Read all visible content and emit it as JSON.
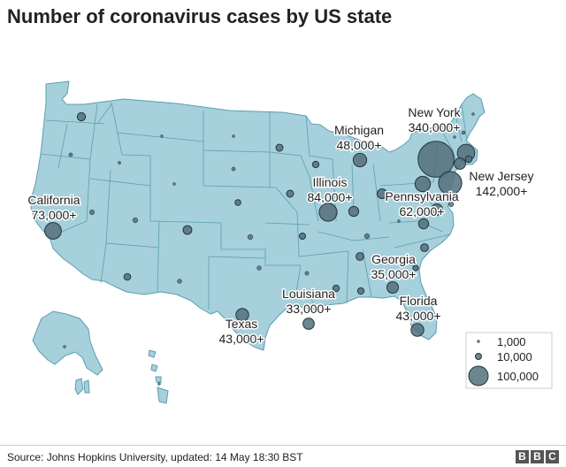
{
  "title": "Number of coronavirus cases by US state",
  "source": "Source: Johns Hopkins University, updated: 14 May 18:30 BST",
  "logo": [
    "B",
    "B",
    "C"
  ],
  "colors": {
    "land": "#a6d0dc",
    "land_stroke": "#5c9eb0",
    "bubble_fill": "#53707a",
    "bubble_stroke": "#22363d"
  },
  "labels": [
    {
      "state": "New York",
      "value": "340,000+"
    },
    {
      "state": "New Jersey",
      "value": "142,000+"
    },
    {
      "state": "Michigan",
      "value": "48,000+"
    },
    {
      "state": "Illinois",
      "value": "84,000+"
    },
    {
      "state": "Pennsylvania",
      "value": "62,000+"
    },
    {
      "state": "California",
      "value": "73,000+"
    },
    {
      "state": "Georgia",
      "value": "35,000+"
    },
    {
      "state": "Louisiana",
      "value": "33,000+"
    },
    {
      "state": "Florida",
      "value": "43,000+"
    },
    {
      "state": "Texas",
      "value": "43,000+"
    }
  ],
  "legend": [
    {
      "label": "1,000",
      "value": 1000
    },
    {
      "label": "10,000",
      "value": 10000
    },
    {
      "label": "100,000",
      "value": 100000
    }
  ],
  "cases": [
    {
      "id": "new-york",
      "value": 340000
    },
    {
      "id": "new-jersey",
      "value": 142000
    },
    {
      "id": "illinois",
      "value": 84000
    },
    {
      "id": "california",
      "value": 73000
    },
    {
      "id": "massachusetts",
      "value": 80000
    },
    {
      "id": "pennsylvania",
      "value": 62000
    },
    {
      "id": "michigan",
      "value": 48000
    },
    {
      "id": "connecticut",
      "value": 34000
    },
    {
      "id": "texas",
      "value": 43000
    },
    {
      "id": "florida",
      "value": 43000
    },
    {
      "id": "georgia",
      "value": 35000
    },
    {
      "id": "louisiana",
      "value": 33000
    },
    {
      "id": "maryland",
      "value": 35000
    },
    {
      "id": "indiana",
      "value": 26000
    },
    {
      "id": "ohio",
      "value": 25000
    },
    {
      "id": "virginia",
      "value": 27000
    },
    {
      "id": "colorado",
      "value": 20000
    },
    {
      "id": "washington",
      "value": 18000
    },
    {
      "id": "tennessee",
      "value": 16000
    },
    {
      "id": "north-carolina",
      "value": 16000
    },
    {
      "id": "minnesota",
      "value": 13000
    },
    {
      "id": "iowa",
      "value": 13000
    },
    {
      "id": "arizona",
      "value": 12000
    },
    {
      "id": "wisconsin",
      "value": 11000
    },
    {
      "id": "alabama",
      "value": 11000
    },
    {
      "id": "mississippi",
      "value": 11000
    },
    {
      "id": "rhode-island",
      "value": 12000
    },
    {
      "id": "missouri",
      "value": 10000
    },
    {
      "id": "nebraska",
      "value": 9000
    },
    {
      "id": "south-carolina",
      "value": 8000
    },
    {
      "id": "kansas",
      "value": 7000
    },
    {
      "id": "kentucky",
      "value": 7000
    },
    {
      "id": "delaware",
      "value": 7000
    },
    {
      "id": "utah",
      "value": 7000
    },
    {
      "id": "nevada",
      "value": 6500
    },
    {
      "id": "new-mexico",
      "value": 5000
    },
    {
      "id": "oklahoma",
      "value": 5000
    },
    {
      "id": "arkansas",
      "value": 4000
    },
    {
      "id": "south-dakota",
      "value": 3600
    },
    {
      "id": "new-hampshire",
      "value": 3300
    },
    {
      "id": "oregon",
      "value": 3500
    },
    {
      "id": "idaho",
      "value": 2300
    },
    {
      "id": "north-dakota",
      "value": 1600
    },
    {
      "id": "maine",
      "value": 1500
    },
    {
      "id": "west-virginia",
      "value": 1400
    },
    {
      "id": "vermont",
      "value": 900
    },
    {
      "id": "wyoming",
      "value": 700
    },
    {
      "id": "hawaii",
      "value": 600
    },
    {
      "id": "montana",
      "value": 460
    },
    {
      "id": "alaska",
      "value": 390
    }
  ]
}
